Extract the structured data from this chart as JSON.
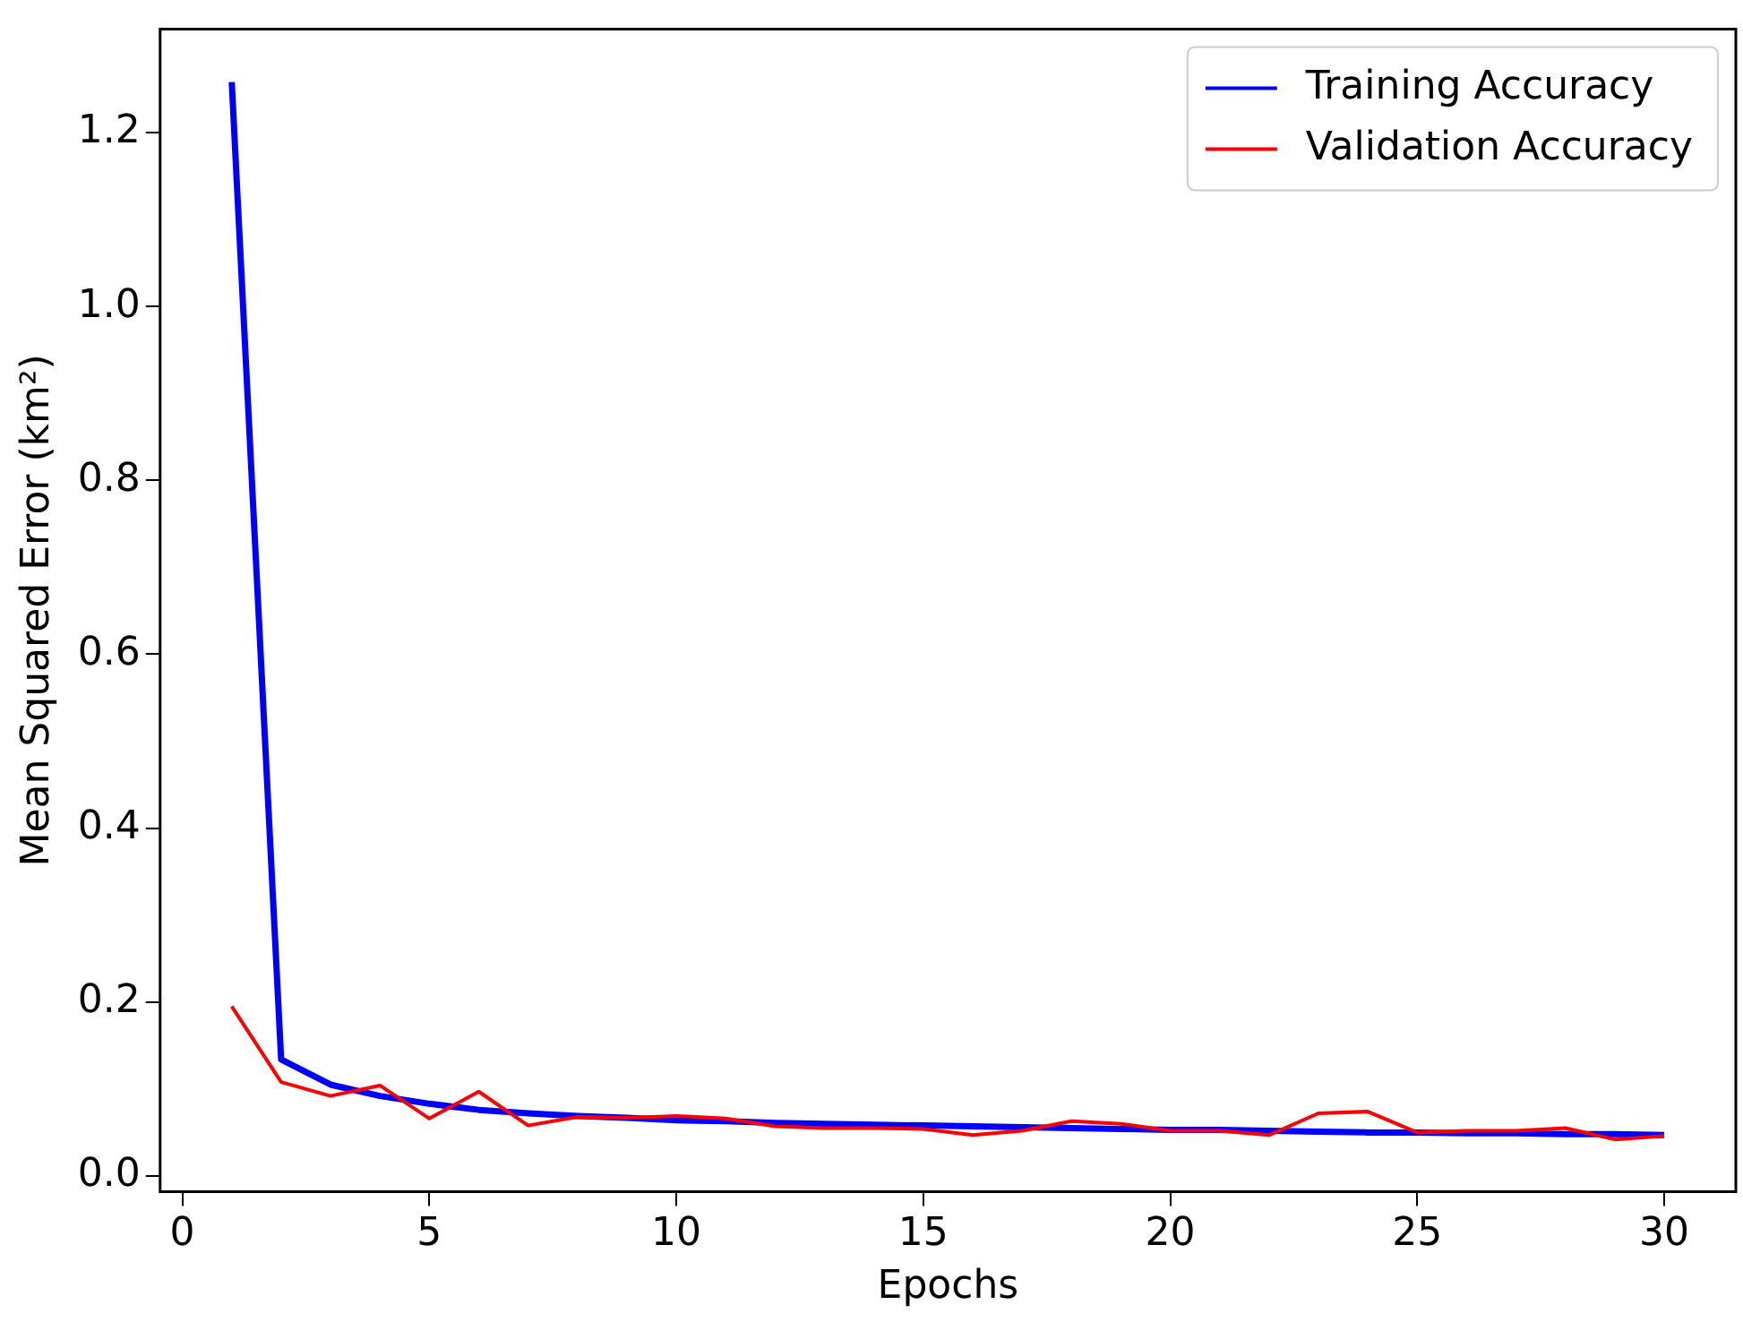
{
  "chart_data": {
    "type": "line",
    "xlabel": "Epochs",
    "ylabel": "Mean Squared Error (km²)",
    "x": [
      1,
      2,
      3,
      4,
      5,
      6,
      7,
      8,
      9,
      10,
      11,
      12,
      13,
      14,
      15,
      16,
      17,
      18,
      19,
      20,
      21,
      22,
      23,
      24,
      25,
      26,
      27,
      28,
      29,
      30
    ],
    "series": [
      {
        "name": "Training Accuracy",
        "color": "#0000ff",
        "values": [
          1.258,
          0.134,
          0.105,
          0.092,
          0.083,
          0.076,
          0.072,
          0.069,
          0.067,
          0.064,
          0.063,
          0.061,
          0.06,
          0.059,
          0.058,
          0.057,
          0.056,
          0.055,
          0.054,
          0.053,
          0.053,
          0.052,
          0.051,
          0.05,
          0.05,
          0.049,
          0.049,
          0.048,
          0.048,
          0.047
        ]
      },
      {
        "name": "Validation Accuracy",
        "color": "#ff0000",
        "values": [
          0.195,
          0.108,
          0.092,
          0.104,
          0.066,
          0.097,
          0.058,
          0.068,
          0.067,
          0.069,
          0.066,
          0.057,
          0.055,
          0.055,
          0.054,
          0.047,
          0.052,
          0.063,
          0.06,
          0.052,
          0.052,
          0.047,
          0.072,
          0.074,
          0.05,
          0.052,
          0.052,
          0.055,
          0.042,
          0.046
        ]
      }
    ],
    "xlim": [
      -0.45,
      31.45
    ],
    "ylim": [
      -0.018,
      1.319
    ],
    "xticks": [
      0,
      5,
      10,
      15,
      20,
      25,
      30
    ],
    "yticks": [
      {
        "value": 0,
        "label": "0.0"
      },
      0.2,
      0.4,
      0.6,
      0.8,
      {
        "value": 1,
        "label": "1.0"
      },
      1.2
    ],
    "grid": false,
    "legend": "top right",
    "marker": "none",
    "line_style": "solid"
  }
}
